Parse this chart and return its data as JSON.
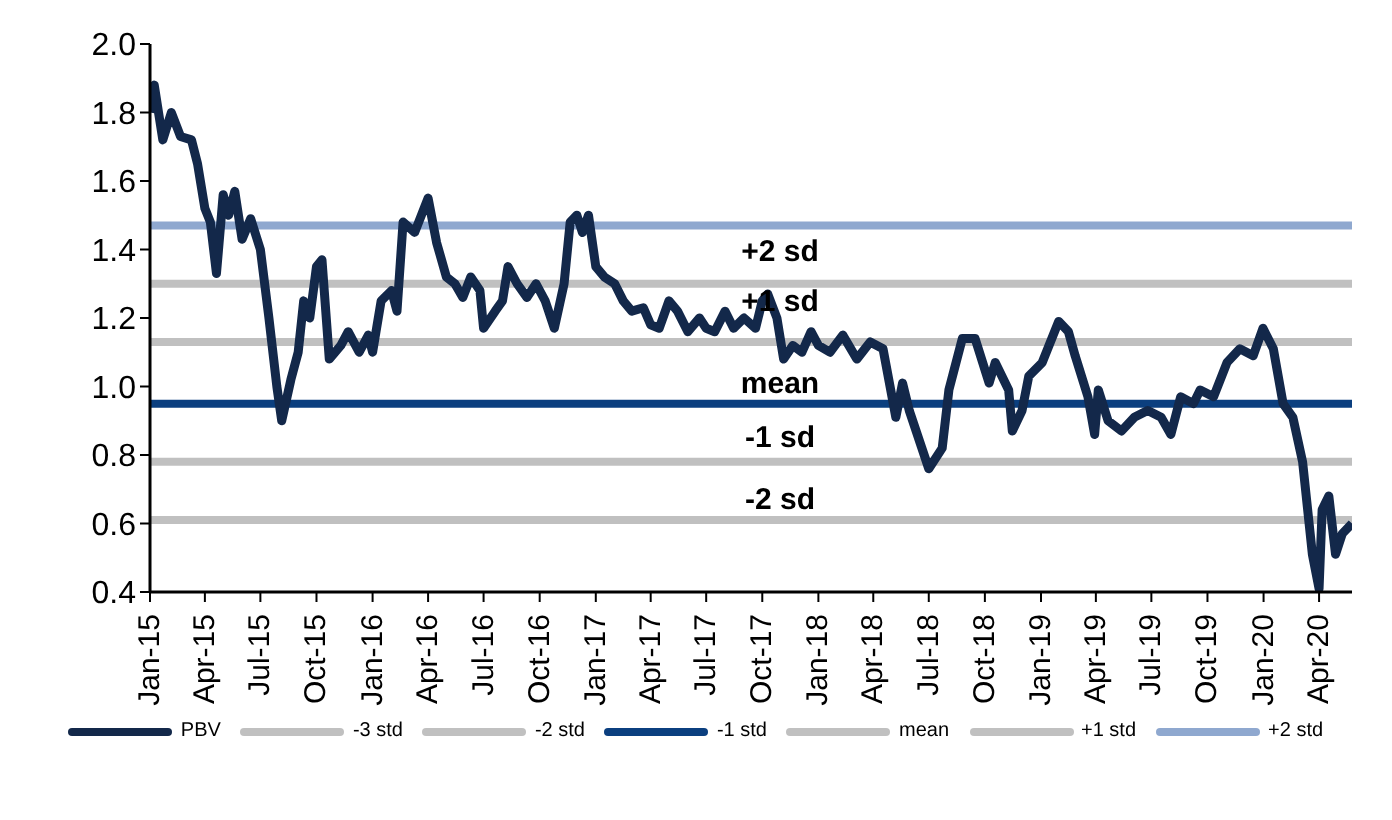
{
  "chart_data": {
    "type": "line",
    "xlim": [
      "2015-01-01",
      "2020-05-25"
    ],
    "ylim": [
      0.4,
      2.0
    ],
    "yticks": [
      0.4,
      0.6,
      0.8,
      {
        "value": 1.0,
        "label": "1.0"
      },
      1.2,
      1.4,
      1.6,
      1.8,
      {
        "value": 2.0,
        "label": "2.0"
      }
    ],
    "xticks": [
      {
        "value": "2015-01-01",
        "label": "Jan-15"
      },
      {
        "value": "2015-04-01",
        "label": "Apr-15"
      },
      {
        "value": "2015-07-01",
        "label": "Jul-15"
      },
      {
        "value": "2015-10-01",
        "label": "Oct-15"
      },
      {
        "value": "2016-01-01",
        "label": "Jan-16"
      },
      {
        "value": "2016-04-01",
        "label": "Apr-16"
      },
      {
        "value": "2016-07-01",
        "label": "Jul-16"
      },
      {
        "value": "2016-10-01",
        "label": "Oct-16"
      },
      {
        "value": "2017-01-01",
        "label": "Jan-17"
      },
      {
        "value": "2017-04-01",
        "label": "Apr-17"
      },
      {
        "value": "2017-07-01",
        "label": "Jul-17"
      },
      {
        "value": "2017-10-01",
        "label": "Oct-17"
      },
      {
        "value": "2018-01-01",
        "label": "Jan-18"
      },
      {
        "value": "2018-04-01",
        "label": "Apr-18"
      },
      {
        "value": "2018-07-01",
        "label": "Jul-18"
      },
      {
        "value": "2018-10-01",
        "label": "Oct-18"
      },
      {
        "value": "2019-01-01",
        "label": "Jan-19"
      },
      {
        "value": "2019-04-01",
        "label": "Apr-19"
      },
      {
        "value": "2019-07-01",
        "label": "Jul-19"
      },
      {
        "value": "2019-10-01",
        "label": "Oct-19"
      },
      {
        "value": "2020-01-01",
        "label": "Jan-20"
      },
      {
        "value": "2020-04-01",
        "label": "Apr-20"
      }
    ],
    "grid": false,
    "legend": "bottom",
    "marker": "none",
    "line_style": "solid",
    "series": [
      {
        "name": "PBV",
        "color": "#13284a",
        "x": [
          "2015-01-01",
          "2015-01-08",
          "2015-01-22",
          "2015-02-05",
          "2015-02-20",
          "2015-03-10",
          "2015-03-20",
          "2015-04-01",
          "2015-04-10",
          "2015-04-20",
          "2015-05-01",
          "2015-05-10",
          "2015-05-20",
          "2015-06-01",
          "2015-06-15",
          "2015-07-01",
          "2015-07-15",
          "2015-07-28",
          "2015-08-05",
          "2015-08-20",
          "2015-09-01",
          "2015-09-10",
          "2015-09-20",
          "2015-10-01",
          "2015-10-10",
          "2015-10-22",
          "2015-11-10",
          "2015-11-22",
          "2015-12-10",
          "2015-12-25",
          "2016-01-01",
          "2016-01-15",
          "2016-02-01",
          "2016-02-10",
          "2016-02-20",
          "2016-03-10",
          "2016-04-01",
          "2016-04-15",
          "2016-05-01",
          "2016-05-15",
          "2016-05-28",
          "2016-06-10",
          "2016-06-25",
          "2016-07-01",
          "2016-07-20",
          "2016-08-01",
          "2016-08-10",
          "2016-08-25",
          "2016-09-10",
          "2016-09-25",
          "2016-10-10",
          "2016-10-25",
          "2016-11-10",
          "2016-11-20",
          "2016-12-01",
          "2016-12-10",
          "2016-12-20",
          "2017-01-01",
          "2017-01-15",
          "2017-02-01",
          "2017-02-15",
          "2017-03-01",
          "2017-03-20",
          "2017-04-01",
          "2017-04-15",
          "2017-05-01",
          "2017-05-15",
          "2017-06-01",
          "2017-06-20",
          "2017-07-01",
          "2017-07-15",
          "2017-08-01",
          "2017-08-15",
          "2017-09-01",
          "2017-09-20",
          "2017-10-01",
          "2017-10-10",
          "2017-10-25",
          "2017-11-05",
          "2017-11-20",
          "2017-12-05",
          "2017-12-20",
          "2018-01-01",
          "2018-01-20",
          "2018-02-10",
          "2018-03-05",
          "2018-03-27",
          "2018-04-17",
          "2018-05-08",
          "2018-05-19",
          "2018-05-30",
          "2018-07-01",
          "2018-07-23",
          "2018-08-03",
          "2018-08-25",
          "2018-09-15",
          "2018-10-08",
          "2018-10-18",
          "2018-11-09",
          "2018-11-15",
          "2018-12-01",
          "2018-12-12",
          "2019-01-03",
          "2019-01-30",
          "2019-02-15",
          "2019-02-26",
          "2019-03-19",
          "2019-03-30",
          "2019-04-05",
          "2019-04-21",
          "2019-05-13",
          "2019-06-03",
          "2019-06-25",
          "2019-07-17",
          "2019-08-02",
          "2019-08-18",
          "2019-09-08",
          "2019-09-19",
          "2019-10-11",
          "2019-11-02",
          "2019-11-23",
          "2019-12-15",
          "2019-12-31",
          "2020-01-17",
          "2020-02-02",
          "2020-02-18",
          "2020-03-05",
          "2020-03-21",
          "2020-04-01",
          "2020-04-06",
          "2020-04-17",
          "2020-04-28",
          "2020-05-09",
          "2020-05-25"
        ],
        "values": [
          1.8,
          1.88,
          1.72,
          1.8,
          1.73,
          1.72,
          1.65,
          1.52,
          1.48,
          1.33,
          1.56,
          1.5,
          1.57,
          1.43,
          1.49,
          1.4,
          1.2,
          1.0,
          0.9,
          1.02,
          1.1,
          1.25,
          1.2,
          1.35,
          1.37,
          1.08,
          1.12,
          1.16,
          1.1,
          1.15,
          1.1,
          1.25,
          1.28,
          1.22,
          1.48,
          1.45,
          1.55,
          1.42,
          1.32,
          1.3,
          1.26,
          1.32,
          1.28,
          1.17,
          1.22,
          1.25,
          1.35,
          1.3,
          1.26,
          1.3,
          1.25,
          1.17,
          1.3,
          1.48,
          1.5,
          1.45,
          1.5,
          1.35,
          1.32,
          1.3,
          1.25,
          1.22,
          1.23,
          1.18,
          1.17,
          1.25,
          1.22,
          1.16,
          1.2,
          1.17,
          1.16,
          1.22,
          1.17,
          1.2,
          1.17,
          1.25,
          1.27,
          1.2,
          1.08,
          1.12,
          1.1,
          1.16,
          1.12,
          1.1,
          1.15,
          1.08,
          1.13,
          1.11,
          0.91,
          1.01,
          0.93,
          0.76,
          0.82,
          0.99,
          1.14,
          1.14,
          1.01,
          1.07,
          0.99,
          0.87,
          0.93,
          1.03,
          1.07,
          1.19,
          1.16,
          1.09,
          0.97,
          0.86,
          0.99,
          0.9,
          0.87,
          0.91,
          0.93,
          0.91,
          0.86,
          0.97,
          0.95,
          0.99,
          0.97,
          1.07,
          1.11,
          1.09,
          1.17,
          1.11,
          0.95,
          0.91,
          0.78,
          0.51,
          0.41,
          0.64,
          0.68,
          0.51,
          0.57,
          0.6
        ]
      },
      {
        "name": "-3 std",
        "color": "#c0c0c0",
        "x": [
          "2015-01-01",
          "2020-05-25"
        ],
        "values": [
          0.61,
          0.61
        ]
      },
      {
        "name": "-2 std",
        "color": "#c0c0c0",
        "x": [
          "2015-01-01",
          "2020-05-25"
        ],
        "values": [
          0.78,
          0.78
        ]
      },
      {
        "name": "-1 std",
        "color": "#0b3f7f",
        "x": [
          "2015-01-01",
          "2020-05-25"
        ],
        "values": [
          0.95,
          0.95
        ]
      },
      {
        "name": "mean",
        "color": "#c0c0c0",
        "x": [
          "2015-01-01",
          "2020-05-25"
        ],
        "values": [
          1.13,
          1.13
        ]
      },
      {
        "name": "+1 std",
        "color": "#c0c0c0",
        "x": [
          "2015-01-01",
          "2020-05-25"
        ],
        "values": [
          1.3,
          1.3
        ]
      },
      {
        "name": "+2 std",
        "color": "#8fa8cf",
        "x": [
          "2015-01-01",
          "2020-05-25"
        ],
        "values": [
          1.47,
          1.47
        ]
      }
    ],
    "annotations": [
      "+2 sd",
      "+1 sd",
      "mean",
      "-1 sd",
      "-2 sd"
    ]
  }
}
